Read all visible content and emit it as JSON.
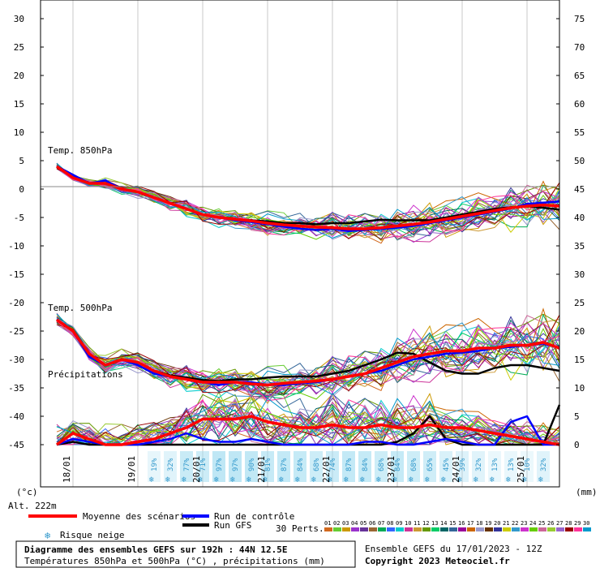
{
  "chart_data": {
    "type": "line",
    "left_axis": {
      "unit": "(°c)",
      "ticks": [
        30,
        25,
        20,
        15,
        10,
        5,
        0,
        -5,
        -10,
        -15,
        -20,
        -25,
        -30,
        -35,
        -40,
        -45
      ],
      "ylim": [
        -45,
        30
      ]
    },
    "right_axis": {
      "unit": "(mm)",
      "ticks": [
        75,
        70,
        65,
        60,
        55,
        50,
        45,
        40,
        35,
        30,
        25,
        20,
        15,
        10,
        5,
        0
      ],
      "ylim": [
        0,
        75
      ]
    },
    "x_axis": {
      "labels": [
        "18/01",
        "19/01",
        "20/01",
        "21/01",
        "22/01",
        "23/01",
        "24/01",
        "25/01"
      ],
      "first_step_hour": 6,
      "step_hours": 6,
      "steps": 32
    },
    "annotations": {
      "t850": "Temp. 850hPa",
      "t500": "Temp. 500hPa",
      "precip": "Précipitations",
      "altitude": "Alt. 222m"
    },
    "snow_risk_percent": [
      "19%",
      "32%",
      "77%",
      "71%",
      "97%",
      "97%",
      "90%",
      "81%",
      "87%",
      "84%",
      "68%",
      "74%",
      "87%",
      "84%",
      "68%",
      "84%",
      "68%",
      "65%",
      "45%",
      "39%",
      "32%",
      "13%",
      "13%",
      "10%",
      "32%"
    ],
    "series": [
      {
        "name": "Moyenne des scénarios",
        "role": "mean",
        "color": "#ff0000",
        "t850": [
          4,
          2,
          1,
          1,
          0,
          -0.5,
          -1.5,
          -2.5,
          -3.5,
          -4.5,
          -5,
          -5.3,
          -5.6,
          -6,
          -6.3,
          -6.5,
          -6.7,
          -6.8,
          -7,
          -7,
          -6.8,
          -6.5,
          -6.2,
          -5.8,
          -5.3,
          -4.8,
          -4.3,
          -3.8,
          -3.3,
          -3,
          -2.8,
          -3
        ],
        "t500": [
          -23,
          -25,
          -29,
          -31,
          -30,
          -30.5,
          -32,
          -33,
          -33.5,
          -34,
          -34,
          -34,
          -34.3,
          -34.5,
          -34.2,
          -34,
          -33.8,
          -33.5,
          -33,
          -32.5,
          -31.5,
          -30.5,
          -29.5,
          -29,
          -28.5,
          -28.5,
          -28,
          -28,
          -27.5,
          -27.5,
          -27,
          -28
        ],
        "precip": [
          0,
          2,
          1,
          0,
          0,
          0.5,
          1,
          2,
          3,
          4.5,
          4.5,
          4.5,
          5,
          4,
          3.5,
          3,
          3,
          3.5,
          3,
          3,
          3.5,
          3,
          3,
          3.5,
          3,
          3,
          2.5,
          2,
          1.5,
          1,
          0.5,
          0
        ]
      },
      {
        "name": "Run de contrôle",
        "role": "control",
        "color": "#0000ff",
        "t850": [
          4,
          2.5,
          1,
          1.5,
          0,
          -0.5,
          -1.5,
          -2.5,
          -3.5,
          -4.5,
          -5,
          -5.5,
          -5.8,
          -6.2,
          -6.6,
          -7,
          -7.2,
          -7,
          -7.4,
          -7.2,
          -7,
          -6.8,
          -6.5,
          -6,
          -5.5,
          -5,
          -4.5,
          -4,
          -3.4,
          -2.6,
          -2.4,
          -2.2
        ],
        "t500": [
          -23,
          -25,
          -29.5,
          -31,
          -30,
          -31,
          -32.5,
          -33,
          -33.5,
          -34,
          -34.5,
          -34,
          -34,
          -34.5,
          -34.5,
          -34.2,
          -34,
          -33.5,
          -33,
          -32.5,
          -32,
          -31,
          -30,
          -29.5,
          -29,
          -28.8,
          -28.5,
          -28,
          -27.8,
          -27.5,
          -27.2,
          -28
        ],
        "precip": [
          0,
          1,
          0.5,
          0,
          0,
          0,
          0.5,
          1,
          2,
          1,
          0.5,
          0.5,
          1,
          0.5,
          0,
          0,
          0,
          0,
          0,
          0.5,
          0.5,
          0,
          0,
          0.5,
          1,
          0.5,
          0,
          0,
          4,
          5,
          0,
          0
        ]
      },
      {
        "name": "Run GFS",
        "role": "gfs",
        "color": "#000000",
        "t850": [
          4,
          2.5,
          1,
          1,
          0,
          -0.5,
          -1.5,
          -2.5,
          -3.5,
          -4.5,
          -5,
          -5.4,
          -5.5,
          -5.7,
          -6,
          -6,
          -6.2,
          -6,
          -6,
          -5.7,
          -5.4,
          -5.5,
          -5.5,
          -5.5,
          -5,
          -4.5,
          -4,
          -3.5,
          -3.2,
          -3,
          -3.3,
          -3.6
        ],
        "t500": [
          -23,
          -25,
          -29.5,
          -31,
          -30,
          -30.5,
          -32,
          -32.8,
          -33.2,
          -33.6,
          -33.8,
          -33.5,
          -33.5,
          -33.2,
          -33,
          -33,
          -33,
          -32.5,
          -32,
          -31,
          -30,
          -28.8,
          -29,
          -30.5,
          -32,
          -32.5,
          -32.5,
          -31.5,
          -31,
          -31,
          -31.5,
          -32
        ],
        "precip": [
          0,
          0.5,
          0,
          0,
          0,
          0,
          0,
          0,
          0,
          0,
          0,
          0,
          0,
          0,
          0,
          0,
          0,
          0,
          0,
          0,
          0,
          0.5,
          2,
          5,
          1,
          0,
          0,
          0,
          0,
          0,
          0,
          7
        ]
      }
    ],
    "perturbation_count": 30,
    "perturbation_label": "30 Perts.",
    "perturbation_ids": [
      "01",
      "02",
      "03",
      "04",
      "05",
      "06",
      "07",
      "08",
      "09",
      "10",
      "11",
      "12",
      "13",
      "14",
      "15",
      "16",
      "17",
      "18",
      "19",
      "20",
      "21",
      "22",
      "23",
      "24",
      "25",
      "26",
      "27",
      "28",
      "29",
      "30"
    ],
    "perturbation_colors": [
      "#d2691e",
      "#66cc33",
      "#cc9900",
      "#9933cc",
      "#663399",
      "#996633",
      "#00aa55",
      "#3366ff",
      "#00cccc",
      "#cc3399",
      "#cc9933",
      "#669900",
      "#00cc66",
      "#006666",
      "#336699",
      "#990099",
      "#cc6600",
      "#9999cc",
      "#663300",
      "#333399",
      "#cccc00",
      "#3399cc",
      "#cc33cc",
      "#66cc00",
      "#cc6699",
      "#99cc33",
      "#9966cc",
      "#990000",
      "#ff3399",
      "#0099cc"
    ]
  },
  "legend": {
    "mean": "Moyenne des scénarios",
    "control": "Run de contrôle",
    "gfs": "Run GFS",
    "snow": "Risque neige"
  },
  "footer": {
    "title": "Diagramme des ensembles GEFS sur 192h : 44N 12.5E",
    "subtitle": "Températures 850hPa et 500hPa (°C) , précipitations (mm)",
    "run_info": "Ensemble GEFS du 17/01/2023 - 12Z",
    "copyright": "Copyright 2023 Meteociel.fr"
  }
}
